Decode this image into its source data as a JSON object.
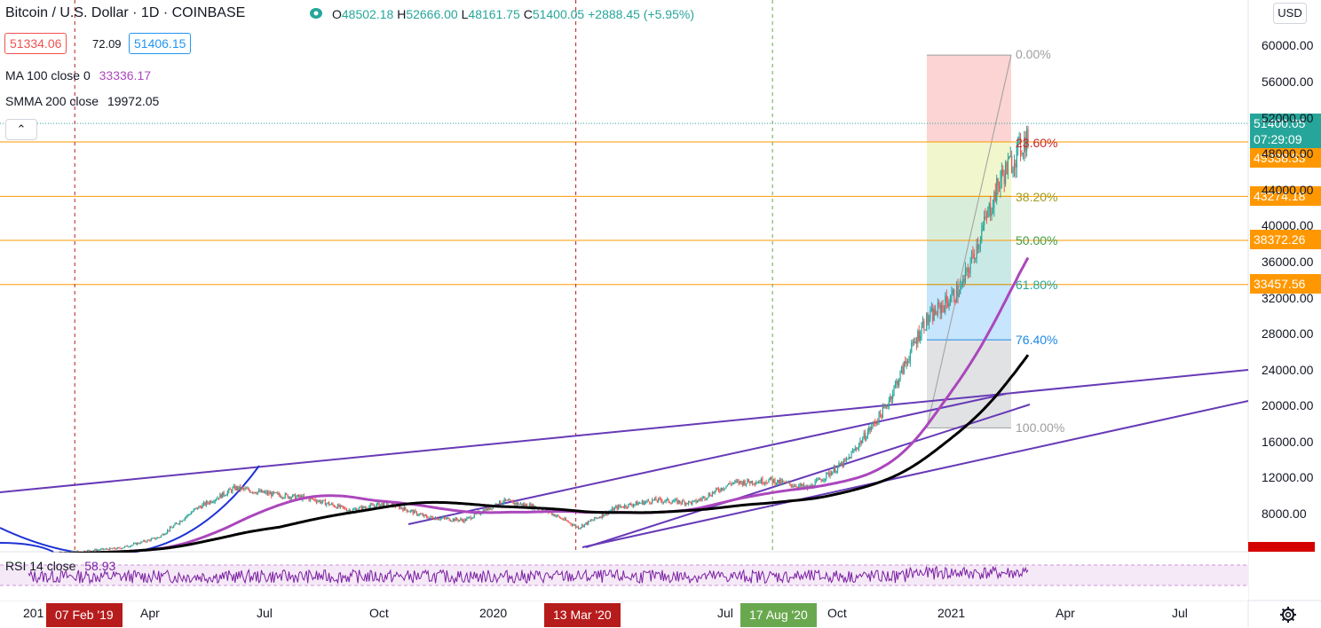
{
  "header": {
    "title": "Bitcoin / U.S. Dollar · 1D · COINBASE",
    "open_label": "O",
    "open": "48502.18",
    "high_label": "H",
    "high": "52666.00",
    "low_label": "L",
    "low": "48161.75",
    "close_label": "C",
    "close": "51400.05",
    "change": "+2888.45 (+5.95%)"
  },
  "trade": {
    "sell_price": "51334.06",
    "spread": "72.09",
    "buy_price": "51406.15"
  },
  "legend": {
    "ma_label": "MA 100 close 0",
    "ma_value": "33336.17",
    "smma_label": "SMMA 200 close",
    "smma_value": "19972.05",
    "collapse_icon": "chevron-up-icon"
  },
  "currency_button": "USD",
  "rsi": {
    "label": "RSI 14 close",
    "value": "58.93"
  },
  "price_tags": [
    {
      "value": "51400.05",
      "sub": "07:29:09",
      "color": "#26a69a"
    },
    {
      "value": "49338.53",
      "color": "#ff9800"
    },
    {
      "value": "43274.18",
      "color": "#ff9800"
    },
    {
      "value": "38372.26",
      "color": "#ff9800"
    },
    {
      "value": "33457.56",
      "color": "#ff9800"
    }
  ],
  "y_axis_labels": [
    "60000.00",
    "56000.00",
    "52000.00",
    "48000.00",
    "44000.00",
    "40000.00",
    "36000.00",
    "32000.00",
    "28000.00",
    "24000.00",
    "20000.00",
    "16000.00",
    "12000.00",
    "8000.00"
  ],
  "x_axis_labels": [
    "201",
    "Apr",
    "Jul",
    "Oct",
    "2020",
    "Jul",
    "Oct",
    "2021",
    "Apr",
    "Jul"
  ],
  "x_axis_tags": [
    {
      "text": "07 Feb '19",
      "color": "#b71c1c"
    },
    {
      "text": "13 Mar '20",
      "color": "#b71c1c"
    },
    {
      "text": "17 Aug '20",
      "color": "#6aa84f"
    }
  ],
  "fib_levels": [
    {
      "label": "0.00%",
      "color": "#9e9e9e"
    },
    {
      "label": "23.60%",
      "color": "#c62828"
    },
    {
      "label": "38.20%",
      "color": "#9e9d24"
    },
    {
      "label": "50.00%",
      "color": "#43a047"
    },
    {
      "label": "61.80%",
      "color": "#26a69a"
    },
    {
      "label": "76.40%",
      "color": "#1e88e5"
    },
    {
      "label": "100.00%",
      "color": "#9e9e9e"
    }
  ],
  "colors": {
    "up": "#26a69a",
    "down": "#ef5350",
    "ma": "#ab47bc",
    "smma": "#000000",
    "trend": "#673ab7",
    "curve": "#1e33d6",
    "h_lines": "#ff9800",
    "rsi": "#7b1fa2"
  },
  "chart_data": {
    "type": "candlestick",
    "symbol": "Bitcoin / U.S. Dollar",
    "interval": "1D",
    "exchange": "COINBASE",
    "y_range": [
      4000,
      62000
    ],
    "ohlc_last": {
      "open": 48502.18,
      "high": 52666.0,
      "low": 48161.75,
      "close": 51400.05
    },
    "approx_monthly_close": [
      {
        "date": "2019-01",
        "close": 3450
      },
      {
        "date": "2019-02",
        "close": 3800
      },
      {
        "date": "2019-03",
        "close": 4100
      },
      {
        "date": "2019-04",
        "close": 5300
      },
      {
        "date": "2019-05",
        "close": 8500
      },
      {
        "date": "2019-06",
        "close": 10800
      },
      {
        "date": "2019-07",
        "close": 10100
      },
      {
        "date": "2019-08",
        "close": 9600
      },
      {
        "date": "2019-09",
        "close": 8300
      },
      {
        "date": "2019-10",
        "close": 9150
      },
      {
        "date": "2019-11",
        "close": 7550
      },
      {
        "date": "2019-12",
        "close": 7200
      },
      {
        "date": "2020-01",
        "close": 9350
      },
      {
        "date": "2020-02",
        "close": 8550
      },
      {
        "date": "2020-03",
        "close": 6400
      },
      {
        "date": "2020-04",
        "close": 8650
      },
      {
        "date": "2020-05",
        "close": 9450
      },
      {
        "date": "2020-06",
        "close": 9150
      },
      {
        "date": "2020-07",
        "close": 11350
      },
      {
        "date": "2020-08",
        "close": 11650
      },
      {
        "date": "2020-09",
        "close": 10800
      },
      {
        "date": "2020-10",
        "close": 13800
      },
      {
        "date": "2020-11",
        "close": 19700
      },
      {
        "date": "2020-12",
        "close": 29000
      },
      {
        "date": "2021-01",
        "close": 33100
      },
      {
        "date": "2021-02",
        "close": 45200
      },
      {
        "date": "2021-03",
        "close": 51400
      }
    ],
    "horizontal_levels": [
      49338.53,
      43274.18,
      38372.26,
      33457.56
    ],
    "indicators": {
      "MA 100 close 0": 33336.17,
      "SMMA 200 close": 19972.05,
      "RSI 14 close": 58.93
    }
  }
}
